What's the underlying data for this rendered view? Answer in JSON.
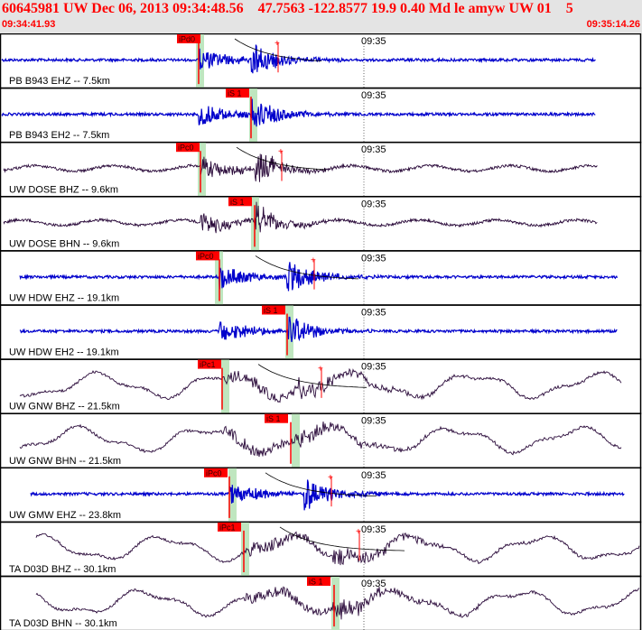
{
  "header": {
    "title": "60645981 UW Dec 06, 2013 09:34:48.56    47.7563 -122.8577 19.9 0.40 Md le amyw UW 01    5",
    "start_time": "09:34:41.93",
    "end_time": "09:35:14.26"
  },
  "colors": {
    "header_bg": "#e4e4e4",
    "header_text": "#ff0000",
    "pick_red": "#ff0000",
    "window_green": "#bfe6bf",
    "trace_blue": "#0000cc",
    "trace_dark": "#2a0a3a",
    "frame": "#000000"
  },
  "time_mark": "09:35",
  "panels": [
    {
      "label": "PB B943 EHZ -- 7.5km",
      "color": "blue",
      "style": "band",
      "pick": {
        "label": "iPd0",
        "kind": "P"
      },
      "has_decay": true
    },
    {
      "label": "PB B943 EH2 -- 7.5km",
      "color": "blue",
      "style": "band",
      "pick": {
        "label": "iS 1",
        "kind": "S"
      },
      "has_decay": false
    },
    {
      "label": "UW DOSE BHZ -- 9.6km",
      "color": "dark",
      "style": "band",
      "pick": {
        "label": "iPc0",
        "kind": "P"
      },
      "has_decay": true
    },
    {
      "label": "UW DOSE BHN -- 9.6km",
      "color": "dark",
      "style": "band",
      "pick": {
        "label": "iS 1",
        "kind": "S"
      },
      "has_decay": false
    },
    {
      "label": "UW HDW EHZ -- 19.1km",
      "color": "blue",
      "style": "band",
      "pick": {
        "label": "iPc0",
        "kind": "P"
      },
      "has_decay": true
    },
    {
      "label": "UW HDW EH2 -- 19.1km",
      "color": "blue",
      "style": "band",
      "pick": {
        "label": "iS 1",
        "kind": "S"
      },
      "has_decay": false
    },
    {
      "label": "UW GNW BHZ -- 21.5km",
      "color": "dark",
      "style": "wave",
      "pick": {
        "label": "iPc1",
        "kind": "P"
      },
      "has_decay": true
    },
    {
      "label": "UW GNW BHN -- 21.5km",
      "color": "dark",
      "style": "wave",
      "pick": {
        "label": "iS 1",
        "kind": "S"
      },
      "has_decay": false
    },
    {
      "label": "UW GMW EHZ -- 23.8km",
      "color": "blue",
      "style": "band",
      "pick": {
        "label": "iPc0",
        "kind": "P"
      },
      "has_decay": true
    },
    {
      "label": "TA D03D BHZ -- 30.1km",
      "color": "dark",
      "style": "wave",
      "pick": {
        "label": "iPc1",
        "kind": "P"
      },
      "has_decay": true
    },
    {
      "label": "TA D03D BHN -- 30.1km",
      "color": "dark",
      "style": "wave",
      "pick": {
        "label": "iS 1",
        "kind": "S"
      },
      "has_decay": false
    }
  ]
}
